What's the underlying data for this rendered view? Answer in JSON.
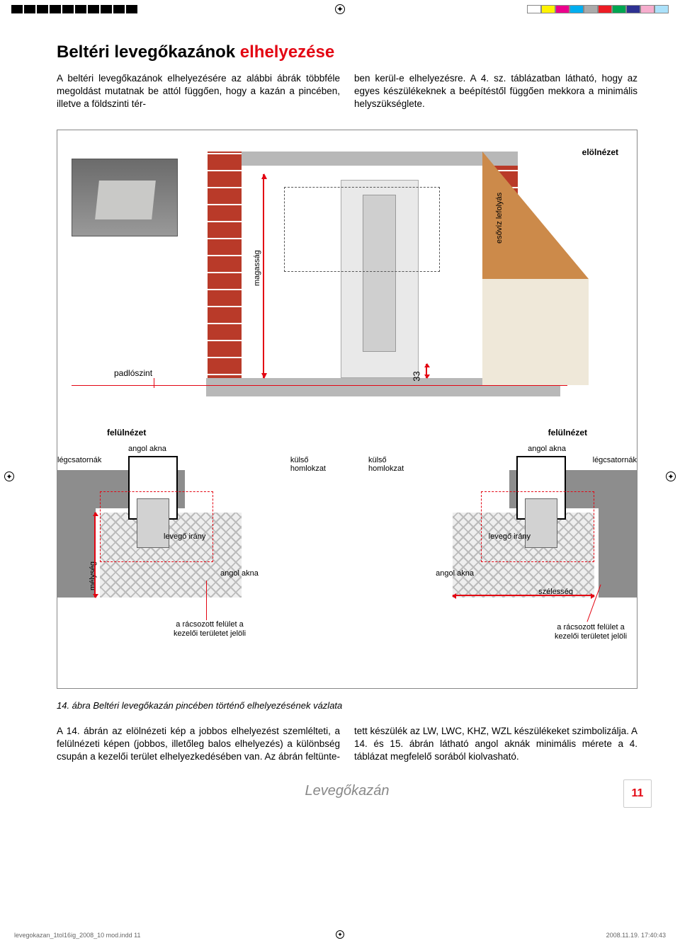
{
  "printbar": {
    "swatches": [
      "#ffffff",
      "#fff200",
      "#ec008c",
      "#00aeef",
      "#aaaaaa",
      "#ed1c24",
      "#00a651",
      "#2e3192",
      "#f6adcd",
      "#abe1fa"
    ]
  },
  "title_main": "Beltéri levegőkazánok",
  "title_accent": " elhelyezése",
  "intro_col1": "A beltéri levegőkazánok elhelyezésére az alábbi ábrák többféle megoldást mutatnak be attól függően, hogy a kazán a pincében, illetve a földszinti tér-",
  "intro_col2": "ben kerül-e elhelyezésre. A 4. sz. táblázatban látható, hogy az egyes készülékeknek a beépítéstől függően mekkora a minimális helyszükséglete.",
  "figure": {
    "front_label": "elölnézet",
    "magassag": "magasság",
    "esoviz": "esővíz lefolyás",
    "padloszint": "padlószint",
    "num33": "33",
    "top_label": "felülnézet",
    "angol_akna": "angol akna",
    "legcsatornak": "légcsatornák",
    "kulso_homlokzat": "külső\nhomlokzat",
    "levego_irany": "levegő irány",
    "melyseg": "mélység",
    "szelesseg": "szélesség",
    "racs_note": "a rácsozott felület\na kezelői\nterületet jelöli",
    "colors": {
      "accent": "#e30613",
      "brick": "#b93a29",
      "roof": "#cc8a4a",
      "grey": "#b8b8b8"
    }
  },
  "caption": "14. ábra  Beltéri levegőkazán pincében történő elhelyezésének vázlata",
  "body_col1": "A 14. ábrán az  elölnézeti kép a jobbos elhelyezést szemlélteti, a felülnézeti képen (jobbos, illetőleg balos elhelyezés) a különbség csupán a kezelői terület elhelyezkedésében van. Az ábrán feltünte-",
  "body_col2": "tett készülék az LW, LWC, KHZ, WZL készülékeket szimbolizálja. A 14. és 15. ábrán látható angol aknák minimális mérete a 4. táblázat megfelelő sorából kiolvasható.",
  "footer_title": "Levegőkazán",
  "page_number": "11",
  "print_footer_left": "levegokazan_1tol16ig_2008_10 mod.indd   11",
  "print_footer_right": "2008.11.19.   17:40:43"
}
